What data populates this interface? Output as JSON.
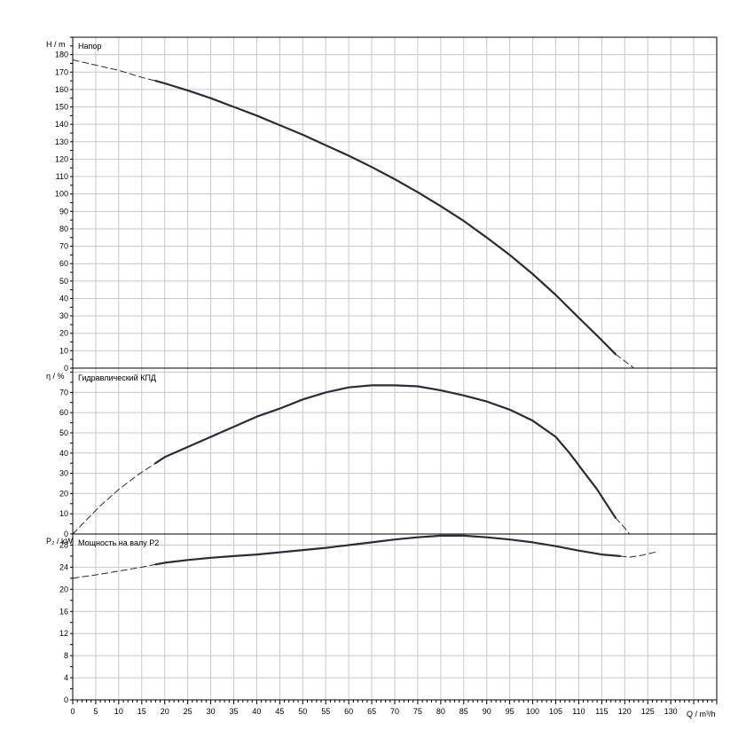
{
  "chart_data": [
    {
      "type": "line",
      "title": "Напор",
      "ylabel": "H / m",
      "xlabel": "",
      "xlim": [
        0,
        140
      ],
      "ylim": [
        0,
        190
      ],
      "y_ticks": [
        0,
        10,
        20,
        30,
        40,
        50,
        60,
        70,
        80,
        90,
        100,
        110,
        120,
        130,
        140,
        150,
        160,
        170,
        180
      ],
      "grid": true,
      "series": [
        {
          "style": "dashed",
          "points": [
            [
              0,
              177
            ],
            [
              5,
              174
            ],
            [
              10,
              171
            ],
            [
              15,
              167
            ],
            [
              18,
              165
            ]
          ]
        },
        {
          "style": "solid",
          "points": [
            [
              18,
              165
            ],
            [
              20,
              163.5
            ],
            [
              25,
              159.5
            ],
            [
              30,
              155
            ],
            [
              35,
              150
            ],
            [
              40,
              145
            ],
            [
              45,
              139.5
            ],
            [
              50,
              134
            ],
            [
              55,
              128
            ],
            [
              60,
              122
            ],
            [
              65,
              115.5
            ],
            [
              70,
              108.5
            ],
            [
              75,
              101
            ],
            [
              80,
              93
            ],
            [
              85,
              84.5
            ],
            [
              90,
              75
            ],
            [
              95,
              65
            ],
            [
              100,
              54
            ],
            [
              105,
              42
            ],
            [
              110,
              29
            ],
            [
              115,
              16
            ],
            [
              118,
              8
            ]
          ]
        },
        {
          "style": "dashed",
          "points": [
            [
              118,
              8
            ],
            [
              120,
              4
            ],
            [
              122,
              0
            ]
          ]
        }
      ]
    },
    {
      "type": "line",
      "title": "Гидравлический КПД",
      "ylabel": "η / %",
      "xlabel": "",
      "xlim": [
        0,
        140
      ],
      "ylim": [
        0,
        82
      ],
      "y_ticks": [
        0,
        10,
        20,
        30,
        40,
        50,
        60,
        70
      ],
      "grid": true,
      "series": [
        {
          "style": "dashed",
          "points": [
            [
              0,
              0
            ],
            [
              3,
              7
            ],
            [
              6,
              14
            ],
            [
              10,
              22
            ],
            [
              14,
              29
            ],
            [
              18,
              35
            ]
          ]
        },
        {
          "style": "solid",
          "points": [
            [
              18,
              35
            ],
            [
              20,
              38
            ],
            [
              25,
              43
            ],
            [
              30,
              48
            ],
            [
              35,
              53
            ],
            [
              40,
              58
            ],
            [
              45,
              62
            ],
            [
              50,
              66.5
            ],
            [
              55,
              70
            ],
            [
              60,
              72.5
            ],
            [
              65,
              73.5
            ],
            [
              70,
              73.5
            ],
            [
              75,
              73
            ],
            [
              80,
              71
            ],
            [
              85,
              68.5
            ],
            [
              90,
              65.5
            ],
            [
              95,
              61.5
            ],
            [
              100,
              56
            ],
            [
              105,
              48
            ],
            [
              108,
              40
            ],
            [
              111,
              31
            ],
            [
              114,
              22
            ],
            [
              116,
              15
            ],
            [
              118,
              8
            ]
          ]
        },
        {
          "style": "dashed",
          "points": [
            [
              118,
              8
            ],
            [
              120,
              3
            ],
            [
              121,
              0
            ]
          ]
        }
      ]
    },
    {
      "type": "line",
      "title": "Мощность на валу Р2",
      "ylabel": "P₂ / kW",
      "xlabel": "Q / m³/h",
      "xlim": [
        0,
        140
      ],
      "ylim": [
        0,
        30
      ],
      "y_ticks": [
        0,
        4,
        8,
        12,
        16,
        20,
        24,
        28
      ],
      "x_ticks": [
        0,
        5,
        10,
        15,
        20,
        25,
        30,
        35,
        40,
        45,
        50,
        55,
        60,
        65,
        70,
        75,
        80,
        85,
        90,
        95,
        100,
        105,
        110,
        115,
        120,
        125,
        130
      ],
      "grid": true,
      "series": [
        {
          "style": "dashed",
          "points": [
            [
              0,
              22
            ],
            [
              5,
              22.6
            ],
            [
              10,
              23.3
            ],
            [
              15,
              24
            ],
            [
              18,
              24.5
            ]
          ]
        },
        {
          "style": "solid",
          "points": [
            [
              18,
              24.5
            ],
            [
              20,
              24.8
            ],
            [
              25,
              25.3
            ],
            [
              30,
              25.7
            ],
            [
              35,
              26
            ],
            [
              40,
              26.3
            ],
            [
              45,
              26.7
            ],
            [
              50,
              27.1
            ],
            [
              55,
              27.5
            ],
            [
              60,
              28
            ],
            [
              65,
              28.5
            ],
            [
              70,
              29
            ],
            [
              75,
              29.4
            ],
            [
              80,
              29.7
            ],
            [
              85,
              29.7
            ],
            [
              90,
              29.4
            ],
            [
              95,
              29
            ],
            [
              100,
              28.5
            ],
            [
              105,
              27.8
            ],
            [
              110,
              27
            ],
            [
              115,
              26.3
            ],
            [
              119,
              26
            ]
          ]
        },
        {
          "style": "dashed",
          "points": [
            [
              119,
              26
            ],
            [
              121,
              25.8
            ],
            [
              124,
              26.2
            ],
            [
              127,
              26.8
            ]
          ]
        }
      ]
    }
  ]
}
